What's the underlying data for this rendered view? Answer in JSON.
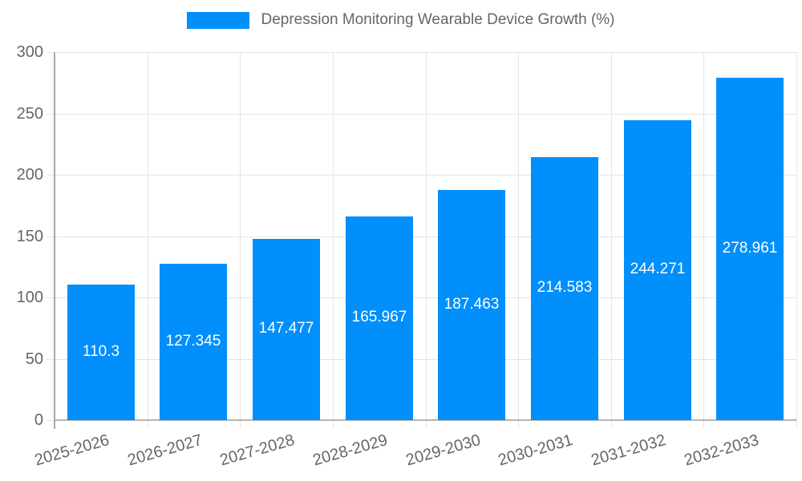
{
  "legend": {
    "label": "Depression Monitoring Wearable Device Growth (%)",
    "swatch_color": "#008FFB"
  },
  "chart_data": {
    "type": "bar",
    "title": "Depression Monitoring Wearable Device Growth (%)",
    "categories": [
      "2025-2026",
      "2026-2027",
      "2027-2028",
      "2028-2029",
      "2029-2030",
      "2030-2031",
      "2031-2032",
      "2032-2033"
    ],
    "values": [
      110.3,
      127.345,
      147.477,
      165.967,
      187.463,
      214.583,
      244.271,
      278.961
    ],
    "bar_labels": [
      "110.3",
      "127.345",
      "147.477",
      "165.967",
      "187.463",
      "214.583",
      "244.271",
      "278.961"
    ],
    "xlabel": "",
    "ylabel": "",
    "ylim": [
      0,
      300
    ],
    "yticks": [
      0,
      50,
      100,
      150,
      200,
      250,
      300
    ],
    "grid": true,
    "legend_position": "top",
    "bar_color": "#008FFB",
    "value_label_color": "#ffffff",
    "axis_text_color": "#666666",
    "grid_color": "#e5e5e5",
    "axis_line_color": "#b0b0b0"
  }
}
